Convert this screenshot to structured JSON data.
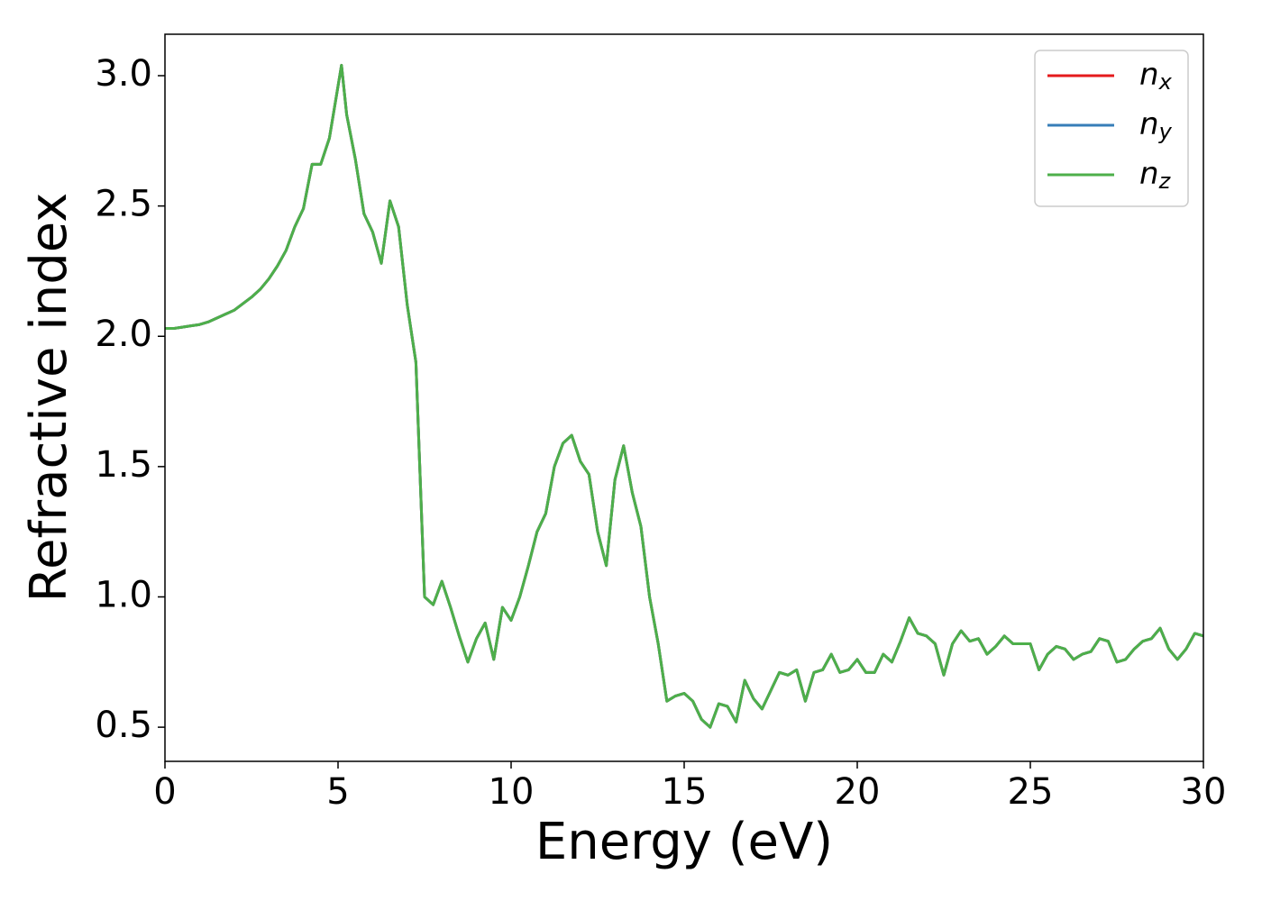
{
  "chart_data": {
    "type": "line",
    "xlabel": "Energy (eV)",
    "ylabel": "Refractive index",
    "xlim": [
      0,
      30
    ],
    "xticks": [
      0,
      5,
      10,
      15,
      20,
      25,
      30
    ],
    "ylim": [
      0.369,
      3.159
    ],
    "yticks": [
      0.5,
      {
        "value": 1.0,
        "label": "1.0"
      },
      1.5,
      {
        "value": 2.0,
        "label": "2.0"
      },
      2.5,
      {
        "value": 3.0,
        "label": "3.0"
      }
    ],
    "legend": "upper right",
    "x": [
      0,
      0.25,
      0.5,
      0.75,
      1,
      1.25,
      1.5,
      1.75,
      2,
      2.25,
      2.5,
      2.75,
      3,
      3.25,
      3.5,
      3.75,
      4,
      4.25,
      4.5,
      4.75,
      5,
      5.1,
      5.25,
      5.5,
      5.75,
      6,
      6.25,
      6.5,
      6.75,
      7,
      7.25,
      7.5,
      7.75,
      8,
      8.25,
      8.5,
      8.75,
      9,
      9.25,
      9.5,
      9.75,
      10,
      10.25,
      10.5,
      10.75,
      11,
      11.25,
      11.5,
      11.75,
      12,
      12.25,
      12.5,
      12.75,
      13,
      13.25,
      13.5,
      13.75,
      14,
      14.25,
      14.5,
      14.75,
      15,
      15.25,
      15.5,
      15.75,
      16,
      16.25,
      16.5,
      16.75,
      17,
      17.25,
      17.5,
      17.75,
      18,
      18.25,
      18.5,
      18.75,
      19,
      19.25,
      19.5,
      19.75,
      20,
      20.25,
      20.5,
      20.75,
      21,
      21.25,
      21.5,
      21.75,
      22,
      22.25,
      22.5,
      22.75,
      23,
      23.25,
      23.5,
      23.75,
      24,
      24.25,
      24.5,
      24.75,
      25,
      25.25,
      25.5,
      25.75,
      26,
      26.25,
      26.5,
      26.75,
      27,
      27.25,
      27.5,
      27.75,
      28,
      28.25,
      28.5,
      28.75,
      29,
      29.25,
      29.5,
      29.75,
      30
    ],
    "series": [
      {
        "name": "nx",
        "color": "#e41a1c",
        "values": [
          2.03,
          2.03,
          2.035,
          2.04,
          2.045,
          2.055,
          2.07,
          2.085,
          2.1,
          2.125,
          2.15,
          2.18,
          2.22,
          2.27,
          2.33,
          2.42,
          2.49,
          2.66,
          2.66,
          2.76,
          2.96,
          3.04,
          2.85,
          2.68,
          2.47,
          2.4,
          2.28,
          2.52,
          2.42,
          2.12,
          1.9,
          1.0,
          0.97,
          1.06,
          0.96,
          0.85,
          0.75,
          0.84,
          0.9,
          0.76,
          0.96,
          0.91,
          1.0,
          1.12,
          1.25,
          1.32,
          1.5,
          1.59,
          1.62,
          1.52,
          1.47,
          1.25,
          1.12,
          1.45,
          1.58,
          1.4,
          1.27,
          1.0,
          0.82,
          0.6,
          0.62,
          0.63,
          0.6,
          0.53,
          0.5,
          0.59,
          0.58,
          0.52,
          0.68,
          0.61,
          0.57,
          0.64,
          0.71,
          0.7,
          0.72,
          0.6,
          0.71,
          0.72,
          0.78,
          0.71,
          0.72,
          0.76,
          0.71,
          0.71,
          0.78,
          0.75,
          0.83,
          0.92,
          0.86,
          0.85,
          0.82,
          0.7,
          0.82,
          0.87,
          0.83,
          0.84,
          0.78,
          0.81,
          0.85,
          0.82,
          0.82,
          0.82,
          0.72,
          0.78,
          0.81,
          0.8,
          0.76,
          0.78,
          0.79,
          0.84,
          0.83,
          0.75,
          0.76,
          0.8,
          0.83,
          0.84,
          0.88,
          0.8,
          0.76,
          0.8,
          0.86,
          0.85
        ]
      },
      {
        "name": "ny",
        "color": "#377eb8",
        "values": [
          2.03,
          2.03,
          2.035,
          2.04,
          2.045,
          2.055,
          2.07,
          2.085,
          2.1,
          2.125,
          2.15,
          2.18,
          2.22,
          2.27,
          2.33,
          2.42,
          2.49,
          2.66,
          2.66,
          2.76,
          2.96,
          3.04,
          2.85,
          2.68,
          2.47,
          2.4,
          2.28,
          2.52,
          2.42,
          2.12,
          1.9,
          1.0,
          0.97,
          1.06,
          0.96,
          0.85,
          0.75,
          0.84,
          0.9,
          0.76,
          0.96,
          0.91,
          1.0,
          1.12,
          1.25,
          1.32,
          1.5,
          1.59,
          1.62,
          1.52,
          1.47,
          1.25,
          1.12,
          1.45,
          1.58,
          1.4,
          1.27,
          1.0,
          0.82,
          0.6,
          0.62,
          0.63,
          0.6,
          0.53,
          0.5,
          0.59,
          0.58,
          0.52,
          0.68,
          0.61,
          0.57,
          0.64,
          0.71,
          0.7,
          0.72,
          0.6,
          0.71,
          0.72,
          0.78,
          0.71,
          0.72,
          0.76,
          0.71,
          0.71,
          0.78,
          0.75,
          0.83,
          0.92,
          0.86,
          0.85,
          0.82,
          0.7,
          0.82,
          0.87,
          0.83,
          0.84,
          0.78,
          0.81,
          0.85,
          0.82,
          0.82,
          0.82,
          0.72,
          0.78,
          0.81,
          0.8,
          0.76,
          0.78,
          0.79,
          0.84,
          0.83,
          0.75,
          0.76,
          0.8,
          0.83,
          0.84,
          0.88,
          0.8,
          0.76,
          0.8,
          0.86,
          0.85
        ]
      },
      {
        "name": "nz",
        "color": "#4daf4a",
        "values": [
          2.03,
          2.03,
          2.035,
          2.04,
          2.045,
          2.055,
          2.07,
          2.085,
          2.1,
          2.125,
          2.15,
          2.18,
          2.22,
          2.27,
          2.33,
          2.42,
          2.49,
          2.66,
          2.66,
          2.76,
          2.96,
          3.04,
          2.85,
          2.68,
          2.47,
          2.4,
          2.28,
          2.52,
          2.42,
          2.12,
          1.9,
          1.0,
          0.97,
          1.06,
          0.96,
          0.85,
          0.75,
          0.84,
          0.9,
          0.76,
          0.96,
          0.91,
          1.0,
          1.12,
          1.25,
          1.32,
          1.5,
          1.59,
          1.62,
          1.52,
          1.47,
          1.25,
          1.12,
          1.45,
          1.58,
          1.4,
          1.27,
          1.0,
          0.82,
          0.6,
          0.62,
          0.63,
          0.6,
          0.53,
          0.5,
          0.59,
          0.58,
          0.52,
          0.68,
          0.61,
          0.57,
          0.64,
          0.71,
          0.7,
          0.72,
          0.6,
          0.71,
          0.72,
          0.78,
          0.71,
          0.72,
          0.76,
          0.71,
          0.71,
          0.78,
          0.75,
          0.83,
          0.92,
          0.86,
          0.85,
          0.82,
          0.7,
          0.82,
          0.87,
          0.83,
          0.84,
          0.78,
          0.81,
          0.85,
          0.82,
          0.82,
          0.82,
          0.72,
          0.78,
          0.81,
          0.8,
          0.76,
          0.78,
          0.79,
          0.84,
          0.83,
          0.75,
          0.76,
          0.8,
          0.83,
          0.84,
          0.88,
          0.8,
          0.76,
          0.8,
          0.86,
          0.85
        ]
      }
    ]
  }
}
